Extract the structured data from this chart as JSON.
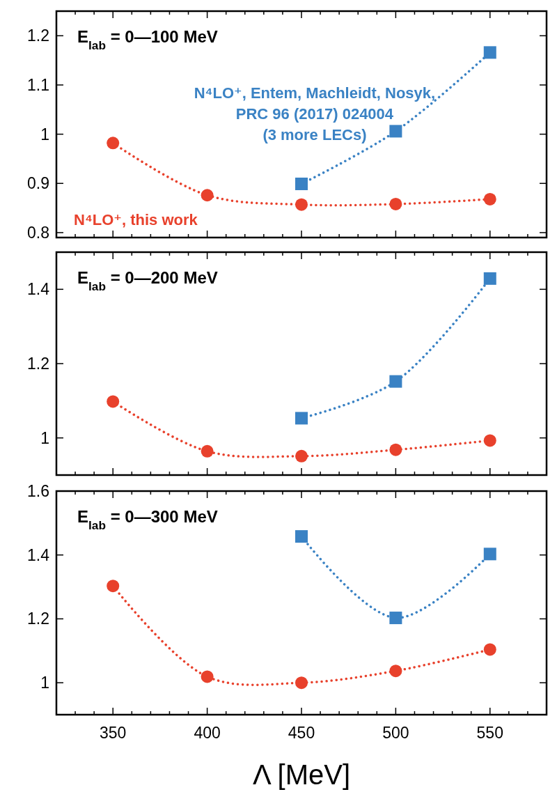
{
  "chart_data": [
    {
      "type": "line",
      "title": "E$_{lab}$ = 0—100 MeV",
      "x": [
        350,
        400,
        450,
        500,
        550
      ],
      "xlim": [
        320,
        580
      ],
      "xticks": [
        {
          "value": 330,
          "label": null
        },
        {
          "value": 340,
          "label": null
        },
        350,
        {
          "value": 360,
          "label": null
        },
        {
          "value": 370,
          "label": null
        },
        {
          "value": 380,
          "label": null
        },
        {
          "value": 390,
          "label": null
        },
        400,
        {
          "value": 410,
          "label": null
        },
        {
          "value": 420,
          "label": null
        },
        {
          "value": 430,
          "label": null
        },
        {
          "value": 440,
          "label": null
        },
        450,
        {
          "value": 460,
          "label": null
        },
        {
          "value": 470,
          "label": null
        },
        {
          "value": 480,
          "label": null
        },
        {
          "value": 490,
          "label": null
        },
        500,
        {
          "value": 510,
          "label": null
        },
        {
          "value": 520,
          "label": null
        },
        {
          "value": 530,
          "label": null
        },
        {
          "value": 540,
          "label": null
        },
        550,
        {
          "value": 560,
          "label": null
        },
        {
          "value": 570,
          "label": null
        }
      ],
      "ylim": [
        0.79,
        1.25
      ],
      "yticks": [
        0.8,
        0.9,
        1,
        1.1,
        1.2
      ],
      "tick_labels": "y",
      "line_style": "dotted",
      "grid": false,
      "series": [
        {
          "name": "N⁴LO⁺, this work",
          "color": "#e8412c",
          "marker": "circle",
          "values": [
            0.982,
            0.876,
            0.857,
            0.858,
            0.868
          ]
        },
        {
          "name": "N⁴LO⁺, Entem, Machleidt, Nosyk,\nPRC 96 (2017) 024004\n(3 more LECs)",
          "color": "#3a82c4",
          "marker": "square",
          "values": [
            null,
            null,
            0.899,
            1.006,
            1.166
          ]
        }
      ]
    },
    {
      "type": "line",
      "title": "E$_{lab}$ = 0—200 MeV",
      "x": [
        350,
        400,
        450,
        500,
        550
      ],
      "xlim": [
        320,
        580
      ],
      "xticks": [
        {
          "value": 330,
          "label": null
        },
        {
          "value": 340,
          "label": null
        },
        350,
        {
          "value": 360,
          "label": null
        },
        {
          "value": 370,
          "label": null
        },
        {
          "value": 380,
          "label": null
        },
        {
          "value": 390,
          "label": null
        },
        400,
        {
          "value": 410,
          "label": null
        },
        {
          "value": 420,
          "label": null
        },
        {
          "value": 430,
          "label": null
        },
        {
          "value": 440,
          "label": null
        },
        450,
        {
          "value": 460,
          "label": null
        },
        {
          "value": 470,
          "label": null
        },
        {
          "value": 480,
          "label": null
        },
        {
          "value": 490,
          "label": null
        },
        500,
        {
          "value": 510,
          "label": null
        },
        {
          "value": 520,
          "label": null
        },
        {
          "value": 530,
          "label": null
        },
        {
          "value": 540,
          "label": null
        },
        550,
        {
          "value": 560,
          "label": null
        },
        {
          "value": 570,
          "label": null
        }
      ],
      "ylim": [
        0.9,
        1.5
      ],
      "yticks": [
        1,
        1.2,
        1.4
      ],
      "tick_labels": "y",
      "line_style": "dotted",
      "grid": false,
      "series": [
        {
          "color": "#e8412c",
          "marker": "circle",
          "values": [
            1.098,
            0.964,
            0.951,
            0.968,
            0.993
          ]
        },
        {
          "color": "#3a82c4",
          "marker": "square",
          "values": [
            null,
            null,
            1.053,
            1.152,
            1.429
          ]
        }
      ]
    },
    {
      "type": "line",
      "title": "E$_{lab}$ = 0—300 MeV",
      "xlabel": "Λ [MeV]",
      "x": [
        350,
        400,
        450,
        500,
        550
      ],
      "xlim": [
        320,
        580
      ],
      "xticks": [
        {
          "value": 330,
          "label": null
        },
        {
          "value": 340,
          "label": null
        },
        350,
        {
          "value": 360,
          "label": null
        },
        {
          "value": 370,
          "label": null
        },
        {
          "value": 380,
          "label": null
        },
        {
          "value": 390,
          "label": null
        },
        400,
        {
          "value": 410,
          "label": null
        },
        {
          "value": 420,
          "label": null
        },
        {
          "value": 430,
          "label": null
        },
        {
          "value": 440,
          "label": null
        },
        450,
        {
          "value": 460,
          "label": null
        },
        {
          "value": 470,
          "label": null
        },
        {
          "value": 480,
          "label": null
        },
        {
          "value": 490,
          "label": null
        },
        500,
        {
          "value": 510,
          "label": null
        },
        {
          "value": 520,
          "label": null
        },
        {
          "value": 530,
          "label": null
        },
        {
          "value": 540,
          "label": null
        },
        550,
        {
          "value": 560,
          "label": null
        },
        {
          "value": 570,
          "label": null
        }
      ],
      "ylim": [
        0.9,
        1.6
      ],
      "yticks": [
        1,
        1.2,
        1.4,
        1.6
      ],
      "line_style": "dotted",
      "grid": false,
      "series": [
        {
          "color": "#e8412c",
          "marker": "circle",
          "values": [
            1.303,
            1.019,
            1.0,
            1.037,
            1.104
          ]
        },
        {
          "color": "#3a82c4",
          "marker": "square",
          "values": [
            null,
            null,
            1.458,
            1.203,
            1.403
          ]
        }
      ]
    }
  ]
}
